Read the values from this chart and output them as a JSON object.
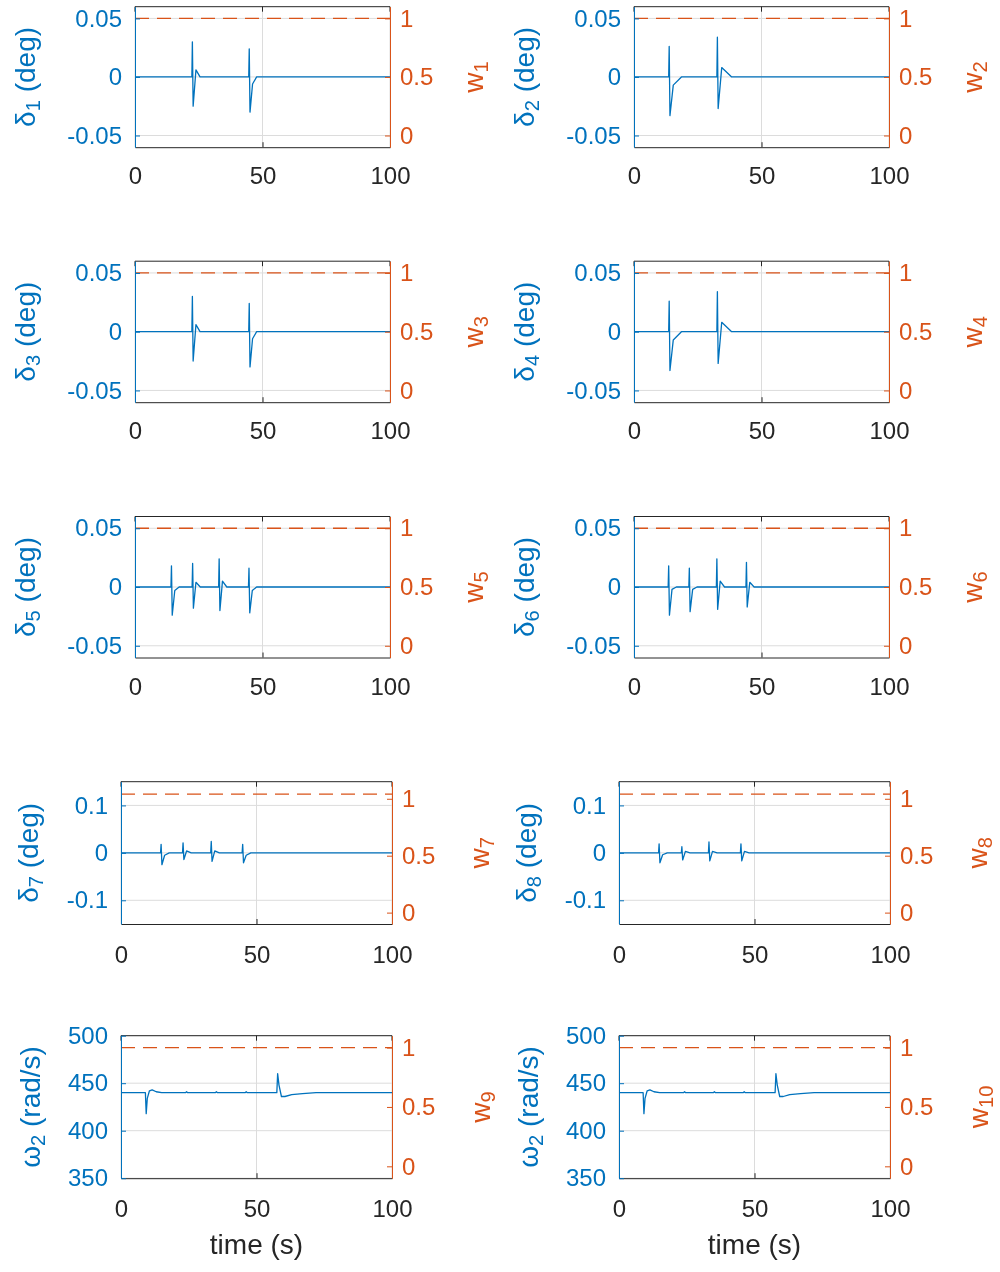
{
  "chart_data": [
    {
      "type": "line",
      "ylabel": "δ$_{1}$ (deg)",
      "y2label": "w$_{1}$",
      "xlim": [
        0,
        100
      ],
      "xticks": [
        0,
        50,
        100
      ],
      "ylim": [
        -0.06,
        0.06
      ],
      "yticks": [
        -0.05,
        0,
        0.05
      ],
      "y2lim": [
        -0.1,
        1.1
      ],
      "y2ticks": [
        0,
        0.5,
        1
      ],
      "grid": true,
      "series": [
        {
          "color": "#0072bd",
          "x": [
            0,
            22.3,
            22.5,
            22.8,
            23.9,
            25.5,
            44.6,
            44.8,
            45.1,
            46.1,
            47.7,
            100
          ],
          "values": [
            0,
            0,
            0.03,
            -0.025,
            0.006,
            0,
            0,
            0.024,
            -0.03,
            -0.006,
            0,
            0
          ]
        },
        {
          "color": "#d95319",
          "axis": "y2",
          "line_style": "dashed",
          "x": [
            0,
            100
          ],
          "values": [
            1,
            1
          ]
        }
      ]
    },
    {
      "type": "line",
      "ylabel": "δ$_{2}$ (deg)",
      "y2label": "w$_{2}$",
      "xlim": [
        0,
        100
      ],
      "xticks": [
        0,
        50,
        100
      ],
      "ylim": [
        -0.06,
        0.06
      ],
      "yticks": [
        -0.05,
        0,
        0.05
      ],
      "y2lim": [
        -0.1,
        1.1
      ],
      "y2ticks": [
        0,
        0.5,
        1
      ],
      "grid": true,
      "series": [
        {
          "color": "#0072bd",
          "x": [
            0,
            13.6,
            13.8,
            14.1,
            15.4,
            18.6,
            32.5,
            32.7,
            33.0,
            34.4,
            38.3,
            100
          ],
          "values": [
            0,
            0,
            0.026,
            -0.033,
            -0.007,
            0,
            0,
            0.034,
            -0.027,
            0.008,
            0,
            0
          ]
        },
        {
          "color": "#d95319",
          "axis": "y2",
          "line_style": "dashed",
          "x": [
            0,
            100
          ],
          "values": [
            1,
            1
          ]
        }
      ]
    },
    {
      "type": "line",
      "ylabel": "δ$_{3}$ (deg)",
      "y2label": "w$_{3}$",
      "xlim": [
        0,
        100
      ],
      "xticks": [
        0,
        50,
        100
      ],
      "ylim": [
        -0.06,
        0.06
      ],
      "yticks": [
        -0.05,
        0,
        0.05
      ],
      "y2lim": [
        -0.1,
        1.1
      ],
      "y2ticks": [
        0,
        0.5,
        1
      ],
      "grid": true,
      "series": [
        {
          "color": "#0072bd",
          "x": [
            0,
            22.3,
            22.5,
            22.8,
            23.9,
            25.5,
            44.6,
            44.8,
            45.1,
            46.1,
            47.7,
            100
          ],
          "values": [
            0,
            0,
            0.03,
            -0.025,
            0.006,
            0,
            0,
            0.024,
            -0.03,
            -0.006,
            0,
            0
          ]
        },
        {
          "color": "#d95319",
          "axis": "y2",
          "line_style": "dashed",
          "x": [
            0,
            100
          ],
          "values": [
            1,
            1
          ]
        }
      ]
    },
    {
      "type": "line",
      "ylabel": "δ$_{4}$ (deg)",
      "y2label": "w$_{4}$",
      "xlim": [
        0,
        100
      ],
      "xticks": [
        0,
        50,
        100
      ],
      "ylim": [
        -0.06,
        0.06
      ],
      "yticks": [
        -0.05,
        0,
        0.05
      ],
      "y2lim": [
        -0.1,
        1.1
      ],
      "y2ticks": [
        0,
        0.5,
        1
      ],
      "grid": true,
      "series": [
        {
          "color": "#0072bd",
          "x": [
            0,
            13.6,
            13.8,
            14.1,
            15.4,
            18.6,
            32.5,
            32.7,
            33.0,
            34.4,
            38.3,
            100
          ],
          "values": [
            0,
            0,
            0.026,
            -0.033,
            -0.007,
            0,
            0,
            0.034,
            -0.027,
            0.008,
            0,
            0
          ]
        },
        {
          "color": "#d95319",
          "axis": "y2",
          "line_style": "dashed",
          "x": [
            0,
            100
          ],
          "values": [
            1,
            1
          ]
        }
      ]
    },
    {
      "type": "line",
      "ylabel": "δ$_{5}$ (deg)",
      "y2label": "w$_{5}$",
      "xlim": [
        0,
        100
      ],
      "xticks": [
        0,
        50,
        100
      ],
      "ylim": [
        -0.06,
        0.06
      ],
      "yticks": [
        -0.05,
        0,
        0.05
      ],
      "y2lim": [
        -0.1,
        1.1
      ],
      "y2ticks": [
        0,
        0.5,
        1
      ],
      "grid": true,
      "series": [
        {
          "color": "#0072bd",
          "x": [
            0,
            14.1,
            14.3,
            14.6,
            15.6,
            17.3,
            22.4,
            22.6,
            22.9,
            23.9,
            25.6,
            32.8,
            33.0,
            33.3,
            34.3,
            36.0,
            44.5,
            44.7,
            45.0,
            46.0,
            47.7,
            100
          ],
          "values": [
            0,
            0,
            0.018,
            -0.024,
            -0.003,
            0,
            0,
            0.02,
            -0.018,
            0.004,
            0,
            0,
            0.024,
            -0.02,
            0.005,
            0,
            0,
            0.016,
            -0.022,
            -0.003,
            0,
            0
          ]
        },
        {
          "color": "#d95319",
          "axis": "y2",
          "line_style": "dashed",
          "x": [
            0,
            100
          ],
          "values": [
            1,
            1
          ]
        }
      ]
    },
    {
      "type": "line",
      "ylabel": "δ$_{6}$ (deg)",
      "y2label": "w$_{6}$",
      "xlim": [
        0,
        100
      ],
      "xticks": [
        0,
        50,
        100
      ],
      "ylim": [
        -0.06,
        0.06
      ],
      "yticks": [
        -0.05,
        0,
        0.05
      ],
      "y2lim": [
        -0.1,
        1.1
      ],
      "y2ticks": [
        0,
        0.5,
        1
      ],
      "grid": true,
      "series": [
        {
          "color": "#0072bd",
          "x": [
            0,
            13.4,
            13.6,
            13.9,
            14.9,
            16.6,
            21.5,
            21.7,
            22.0,
            23.0,
            24.7,
            32.3,
            32.5,
            32.8,
            33.8,
            35.5,
            43.9,
            44.1,
            44.4,
            45.4,
            47.1,
            100
          ],
          "values": [
            0,
            0,
            0.018,
            -0.024,
            -0.002,
            0,
            0,
            0.016,
            -0.021,
            -0.002,
            0,
            0,
            0.024,
            -0.019,
            0.005,
            0,
            0,
            0.021,
            -0.017,
            0.004,
            0,
            0
          ]
        },
        {
          "color": "#d95319",
          "axis": "y2",
          "line_style": "dashed",
          "x": [
            0,
            100
          ],
          "values": [
            1,
            1
          ]
        }
      ]
    },
    {
      "type": "line",
      "ylabel": "δ$_{7}$ (deg)",
      "y2label": "w$_{7}$",
      "xlim": [
        0,
        100
      ],
      "xticks": [
        0,
        50,
        100
      ],
      "ylim": [
        -0.15,
        0.15
      ],
      "yticks": [
        -0.1,
        0,
        0.1
      ],
      "y2lim": [
        -0.1,
        1.15
      ],
      "y2ticks": [
        0,
        0.5,
        1
      ],
      "grid": true,
      "series": [
        {
          "color": "#0072bd",
          "x": [
            0,
            14.6,
            14.8,
            15.1,
            16.1,
            17.8,
            22.7,
            22.9,
            23.2,
            24.2,
            25.9,
            33.1,
            33.3,
            33.6,
            34.6,
            36.3,
            44.7,
            44.9,
            45.2,
            46.2,
            47.9,
            100
          ],
          "values": [
            0,
            0,
            0.018,
            -0.025,
            -0.005,
            0,
            0,
            0.021,
            -0.014,
            0.004,
            0,
            0,
            0.024,
            -0.018,
            0.004,
            0,
            0,
            0.018,
            -0.021,
            -0.005,
            0,
            0
          ]
        },
        {
          "color": "#d95319",
          "axis": "y2",
          "line_style": "dashed",
          "x": [
            0,
            100
          ],
          "values": [
            1.04,
            1.04
          ]
        }
      ]
    },
    {
      "type": "line",
      "ylabel": "δ$_{8}$ (deg)",
      "y2label": "w$_{8}$",
      "xlim": [
        0,
        100
      ],
      "xticks": [
        0,
        50,
        100
      ],
      "ylim": [
        -0.15,
        0.15
      ],
      "yticks": [
        -0.1,
        0,
        0.1
      ],
      "y2lim": [
        -0.1,
        1.15
      ],
      "y2ticks": [
        0,
        0.5,
        1
      ],
      "grid": true,
      "series": [
        {
          "color": "#0072bd",
          "x": [
            0,
            14.6,
            14.8,
            15.1,
            16.1,
            17.8,
            23.0,
            23.2,
            23.5,
            24.5,
            26.2,
            33.0,
            33.2,
            33.5,
            34.5,
            36.2,
            44.8,
            45.0,
            45.3,
            46.3,
            48.0,
            100
          ],
          "values": [
            0,
            0,
            0.019,
            -0.021,
            -0.004,
            0,
            0,
            0.013,
            -0.015,
            0.003,
            0,
            0,
            0.023,
            -0.017,
            0.003,
            0,
            0,
            0.019,
            -0.017,
            0.003,
            0,
            0
          ]
        },
        {
          "color": "#d95319",
          "axis": "y2",
          "line_style": "dashed",
          "x": [
            0,
            100
          ],
          "values": [
            1.04,
            1.04
          ]
        }
      ]
    },
    {
      "type": "line",
      "xlabel": "time (s)",
      "ylabel": "ω$_{2}$ (rad/s)",
      "y2label": "w$_{9}$",
      "xlim": [
        0,
        100
      ],
      "xticks": [
        0,
        50,
        100
      ],
      "ylim": [
        350,
        500
      ],
      "yticks": [
        350,
        400,
        450,
        500
      ],
      "y2lim": [
        -0.1,
        1.1
      ],
      "y2ticks": [
        0,
        0.5,
        1
      ],
      "grid": true,
      "series": [
        {
          "color": "#0072bd",
          "x": [
            0,
            9.0,
            9.3,
            9.7,
            10.5,
            11.5,
            13,
            15,
            23.8,
            24.2,
            24.6,
            34.8,
            35.2,
            35.6,
            45.8,
            46.2,
            46.6,
            57.5,
            57.8,
            58.3,
            59.2,
            60.5,
            63,
            67,
            72,
            100
          ],
          "values": [
            440,
            440,
            418,
            434,
            442,
            443,
            441,
            440,
            440,
            441,
            440,
            440,
            441,
            440,
            440,
            441,
            440,
            440,
            460,
            448,
            436,
            436,
            438,
            439,
            440,
            440
          ]
        },
        {
          "color": "#d95319",
          "axis": "y2",
          "line_style": "dashed",
          "x": [
            0,
            100
          ],
          "values": [
            1,
            1
          ]
        }
      ]
    },
    {
      "type": "line",
      "xlabel": "time (s)",
      "ylabel": "ω$_{2}$ (rad/s)",
      "y2label": "w$_{10}$",
      "xlim": [
        0,
        100
      ],
      "xticks": [
        0,
        50,
        100
      ],
      "ylim": [
        350,
        500
      ],
      "yticks": [
        350,
        400,
        450,
        500
      ],
      "y2lim": [
        -0.1,
        1.1
      ],
      "y2ticks": [
        0,
        0.5,
        1
      ],
      "grid": true,
      "series": [
        {
          "color": "#0072bd",
          "x": [
            0,
            8.9,
            9.2,
            9.6,
            10.4,
            11.4,
            12.9,
            15,
            23.8,
            24.2,
            24.6,
            34.8,
            35.2,
            35.6,
            45.8,
            46.2,
            46.6,
            57.6,
            57.9,
            58.4,
            59.3,
            60.6,
            63,
            67,
            72,
            100
          ],
          "values": [
            440,
            440,
            418,
            434,
            442,
            443,
            441,
            440,
            440,
            441,
            440,
            440,
            441,
            440,
            440,
            441,
            440,
            440,
            460,
            448,
            436,
            436,
            438,
            439,
            440,
            440
          ]
        },
        {
          "color": "#d95319",
          "axis": "y2",
          "line_style": "dashed",
          "x": [
            0,
            100
          ],
          "values": [
            1,
            1
          ]
        }
      ]
    }
  ]
}
